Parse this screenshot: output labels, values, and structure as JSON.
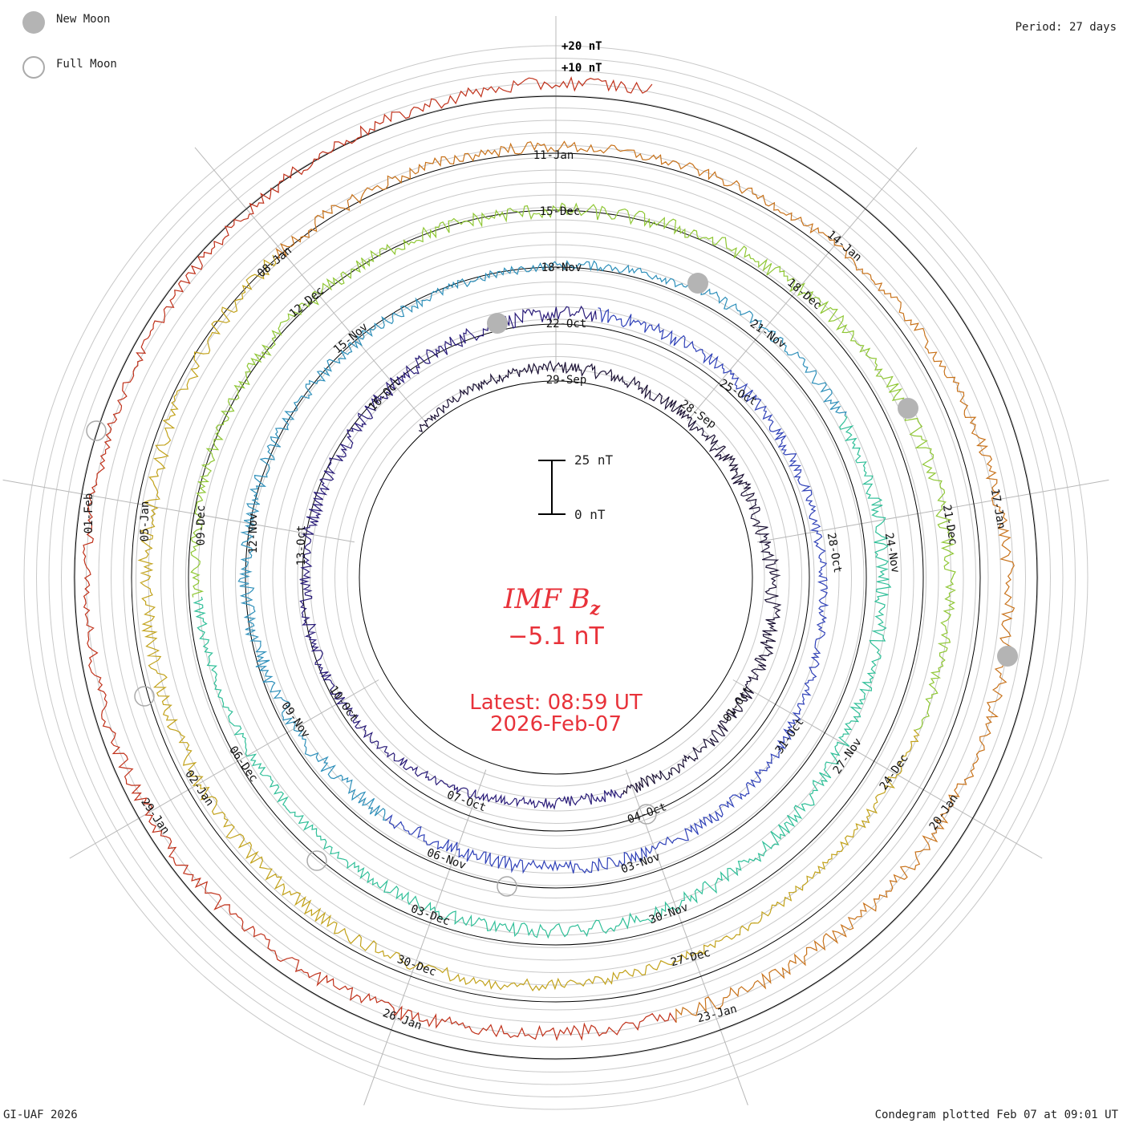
{
  "legend": {
    "new_moon_label": "New Moon",
    "full_moon_label": "Full Moon"
  },
  "header": {
    "period": "Period: 27 days"
  },
  "footer": {
    "credit": "GI-UAF 2026",
    "plotted": "Condegram plotted Feb 07 at 09:01 UT"
  },
  "scale": {
    "upper_label": "+20 nT",
    "lower_label": "+10 nT",
    "bar_top_label": "25 nT",
    "bar_bottom_label": "0 nT"
  },
  "center": {
    "title_main": "IMF B",
    "title_sub": "z",
    "value": "−5.1 nT",
    "latest_time": "Latest: 08:59 UT",
    "latest_date": "2026-Feb-07"
  },
  "colors": {
    "new_moon": "#b4b4b4",
    "full_moon_stroke": "#aaaaaa",
    "grid": "#c8c8c8",
    "axis": "#000000",
    "accent": "#e8323a",
    "ring_colors": [
      "#1a1033",
      "#281a78",
      "#2f41b8",
      "#2d8fba",
      "#2fbf98",
      "#8fc734",
      "#c2a21a",
      "#c8721a",
      "#c0311a"
    ]
  },
  "chart_data": {
    "type": "condegram-spiral",
    "title": "IMF Bz",
    "units": "nT",
    "period_days": 27,
    "latest_value": -5.1,
    "latest_time": "08:59 UT",
    "latest_date": "2026-Feb-07",
    "rings": [
      {
        "index": 0,
        "tick_labels": [
          "29-Sep",
          "28-Sep"
        ]
      },
      {
        "index": 1,
        "tick_labels": [
          "22-Oct",
          "25-Oct",
          "01-Oct",
          "04-Oct",
          "07-Oct",
          "10-Oct",
          "13-Oct",
          "16-Oct",
          "19-Oct"
        ]
      },
      {
        "index": 2,
        "tick_labels": [
          "18-Nov",
          "21-Nov",
          "24-Nov",
          "28-Oct",
          "31-Oct",
          "03-Nov",
          "06-Nov",
          "09-Nov",
          "12-Nov",
          "15-Nov"
        ]
      },
      {
        "index": 3,
        "tick_labels": [
          "15-Dec",
          "18-Dec",
          "21-Dec",
          "24-Dec",
          "27-Nov",
          "30-Nov",
          "03-Dec",
          "06-Dec",
          "09-Dec",
          "12-Dec"
        ]
      },
      {
        "index": 4,
        "tick_labels": [
          "11-Jan",
          "14-Jan",
          "17-Jan",
          "20-Jan",
          "27-Dec",
          "30-Dec",
          "02-Jan",
          "05-Jan",
          "08-Jan"
        ]
      },
      {
        "index": 5,
        "tick_labels": [
          "23-Jan",
          "26-Jan",
          "29-Jan",
          "01-Feb"
        ]
      }
    ],
    "new_moons": [
      "ring2 ~22-Oct",
      "ring3 ~18-Nov",
      "ring4 ~18-Dec",
      "ring5 ~17-Jan"
    ],
    "full_moons": [
      "ring1 ~07-Oct",
      "ring2 ~05-Nov",
      "ring3 ~04-Dec",
      "ring4 ~03-Jan",
      "ring5 ~01-Feb"
    ]
  }
}
